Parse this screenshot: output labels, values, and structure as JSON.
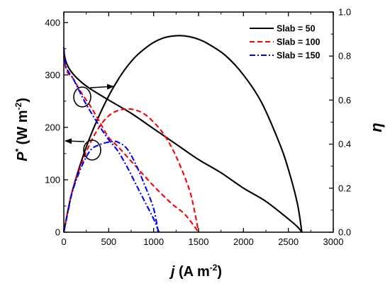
{
  "chart_data": {
    "type": "line",
    "xlabel": {
      "main": "j",
      "unit_prefix": " (A m",
      "unit_exp": "-2",
      "unit_suffix": ")"
    },
    "ylabel_left": {
      "main": "P",
      "sup": "*",
      "unit_prefix": " (W m",
      "unit_exp": "-2",
      "unit_suffix": ")"
    },
    "ylabel_right": "η",
    "xlim": [
      0,
      3000
    ],
    "ylim_left": [
      0,
      420
    ],
    "ylim_right": [
      0,
      1.0
    ],
    "xticks": [
      "0",
      "500",
      "1000",
      "1500",
      "2000",
      "2500",
      "3000"
    ],
    "yticks_left": [
      "0",
      "100",
      "200",
      "300",
      "400"
    ],
    "yticks_right": [
      "0.0",
      "0.2",
      "0.4",
      "0.6",
      "0.8",
      "1.0"
    ],
    "legend_position": "top-right",
    "series": [
      {
        "name": "Slab = 50",
        "color": "#000000",
        "dash": "solid",
        "power": {
          "x": [
            0,
            50,
            100,
            200,
            300,
            400,
            500,
            600,
            700,
            800,
            900,
            1000,
            1100,
            1200,
            1300,
            1400,
            1500,
            1600,
            1800,
            2000,
            2200,
            2400,
            2500,
            2600,
            2650
          ],
          "y": [
            0,
            45,
            82,
            138,
            185,
            225,
            260,
            290,
            315,
            335,
            350,
            362,
            370,
            374,
            375,
            373,
            368,
            360,
            337,
            300,
            248,
            170,
            120,
            55,
            0
          ]
        },
        "efficiency": {
          "x": [
            0,
            20,
            50,
            100,
            200,
            300,
            500,
            750,
            1000,
            1250,
            1500,
            1750,
            2000,
            2250,
            2500,
            2600,
            2650
          ],
          "y": [
            0.82,
            0.78,
            0.75,
            0.72,
            0.68,
            0.65,
            0.6,
            0.54,
            0.47,
            0.4,
            0.33,
            0.27,
            0.2,
            0.14,
            0.06,
            0.025,
            0.0
          ]
        }
      },
      {
        "name": "Slab = 100",
        "color": "#ff0000",
        "dash": "dash",
        "power": {
          "x": [
            0,
            50,
            100,
            200,
            300,
            400,
            500,
            600,
            700,
            800,
            900,
            1000,
            1100,
            1200,
            1300,
            1400,
            1450,
            1500
          ],
          "y": [
            0,
            45,
            82,
            132,
            172,
            202,
            222,
            232,
            235,
            233,
            225,
            210,
            190,
            162,
            125,
            80,
            45,
            0
          ]
        },
        "efficiency": {
          "x": [
            0,
            20,
            50,
            100,
            200,
            300,
            400,
            500,
            600,
            800,
            1000,
            1200,
            1350,
            1500
          ],
          "y": [
            0.8,
            0.75,
            0.72,
            0.7,
            0.63,
            0.57,
            0.5,
            0.43,
            0.39,
            0.3,
            0.21,
            0.13,
            0.08,
            0.0
          ]
        }
      },
      {
        "name": "Slab = 150",
        "color": "#0000ff",
        "dash": "dashdot",
        "power": {
          "x": [
            0,
            50,
            100,
            200,
            300,
            400,
            500,
            550,
            600,
            700,
            800,
            900,
            1000,
            1050
          ],
          "y": [
            0,
            42,
            80,
            126,
            157,
            167,
            172,
            173,
            172,
            160,
            130,
            90,
            45,
            0
          ]
        },
        "efficiency": {
          "x": [
            0,
            20,
            50,
            100,
            150,
            250,
            400,
            500,
            600,
            700,
            800,
            900,
            1000,
            1060
          ],
          "y": [
            0.84,
            0.76,
            0.73,
            0.7,
            0.66,
            0.58,
            0.48,
            0.42,
            0.37,
            0.3,
            0.22,
            0.14,
            0.06,
            0.0
          ]
        }
      }
    ]
  }
}
